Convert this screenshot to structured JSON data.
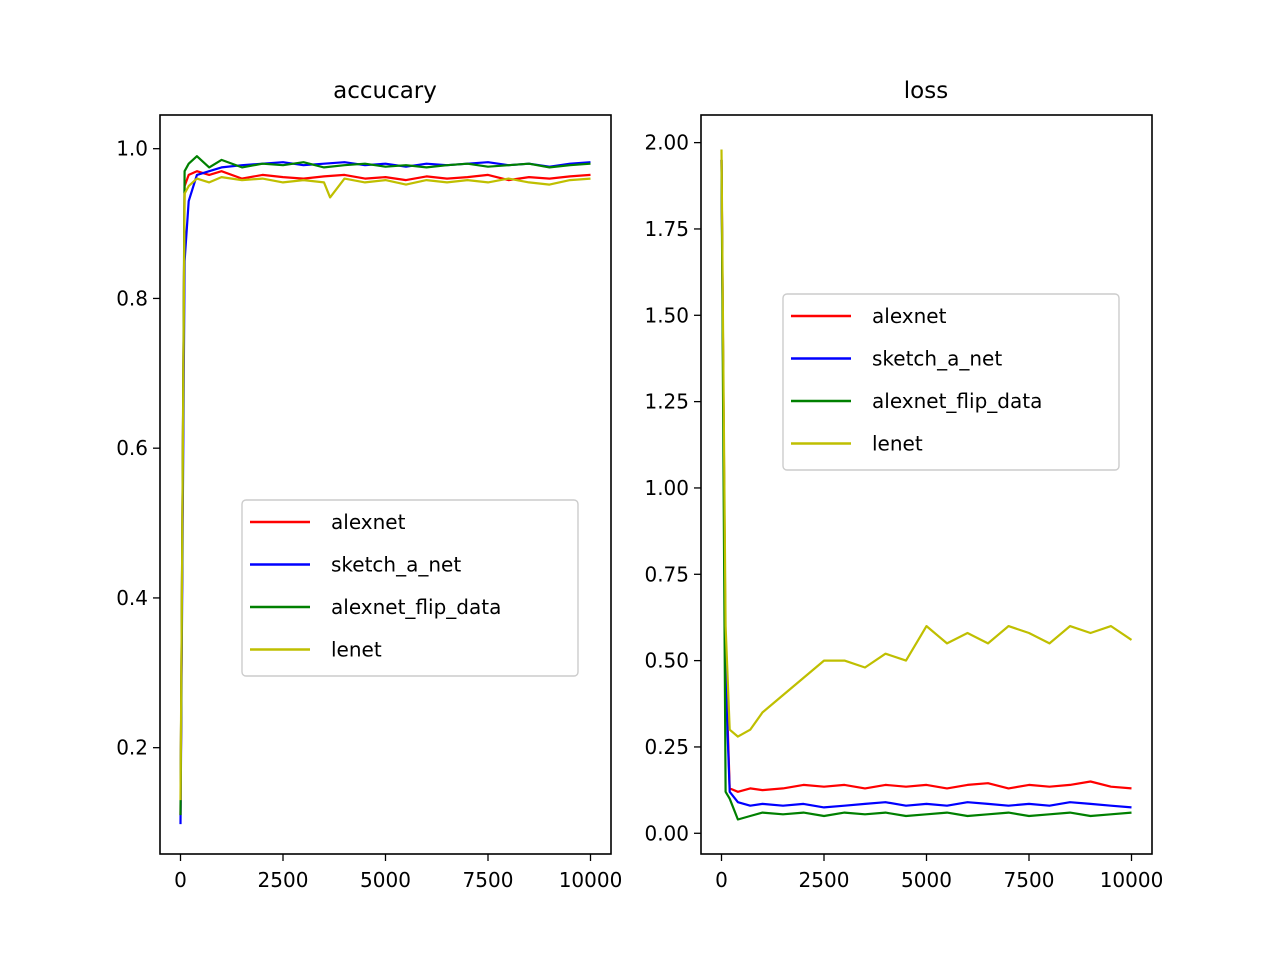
{
  "chart_data": [
    {
      "type": "line",
      "title": "accucary",
      "xlabel": "",
      "ylabel": "",
      "xlim": [
        -500,
        10500
      ],
      "ylim": [
        0.058,
        1.045
      ],
      "xticks": [
        0,
        2500,
        5000,
        7500,
        10000
      ],
      "xtick_labels": [
        "0",
        "2500",
        "5000",
        "7500",
        "10000"
      ],
      "yticks": [
        0.2,
        0.4,
        0.6,
        0.8,
        1.0
      ],
      "ytick_labels": [
        "0.2",
        "0.4",
        "0.6",
        "0.8",
        "1.0"
      ],
      "grid": false,
      "legend_position": "center-right",
      "series": [
        {
          "name": "alexnet",
          "color": "#ff0000",
          "x": [
            0,
            100,
            200,
            400,
            700,
            1000,
            1500,
            2000,
            2500,
            3000,
            3500,
            4000,
            4500,
            5000,
            5500,
            6000,
            6500,
            7000,
            7500,
            8000,
            8500,
            9000,
            9500,
            10000
          ],
          "y": [
            0.11,
            0.95,
            0.965,
            0.97,
            0.965,
            0.97,
            0.96,
            0.965,
            0.962,
            0.96,
            0.963,
            0.965,
            0.96,
            0.962,
            0.958,
            0.963,
            0.96,
            0.962,
            0.965,
            0.958,
            0.962,
            0.96,
            0.963,
            0.965
          ]
        },
        {
          "name": "sketch_a_net",
          "color": "#0000ff",
          "x": [
            0,
            100,
            200,
            400,
            700,
            1000,
            1500,
            2000,
            2500,
            3000,
            3500,
            4000,
            4500,
            5000,
            5500,
            6000,
            6500,
            7000,
            7500,
            8000,
            8500,
            9000,
            9500,
            10000
          ],
          "y": [
            0.098,
            0.85,
            0.93,
            0.965,
            0.97,
            0.975,
            0.978,
            0.98,
            0.982,
            0.978,
            0.98,
            0.982,
            0.978,
            0.98,
            0.976,
            0.98,
            0.978,
            0.98,
            0.982,
            0.978,
            0.98,
            0.976,
            0.98,
            0.982
          ]
        },
        {
          "name": "alexnet_flip_data",
          "color": "#008000",
          "x": [
            0,
            100,
            200,
            400,
            700,
            1000,
            1500,
            2000,
            2500,
            3000,
            3500,
            4000,
            4500,
            5000,
            5500,
            6000,
            6500,
            7000,
            7500,
            8000,
            8500,
            9000,
            9500,
            10000
          ],
          "y": [
            0.11,
            0.97,
            0.98,
            0.99,
            0.975,
            0.985,
            0.975,
            0.98,
            0.978,
            0.982,
            0.975,
            0.978,
            0.98,
            0.976,
            0.978,
            0.975,
            0.978,
            0.98,
            0.976,
            0.978,
            0.98,
            0.975,
            0.978,
            0.98
          ]
        },
        {
          "name": "lenet",
          "color": "#bfbf00",
          "x": [
            0,
            100,
            200,
            400,
            700,
            1000,
            1500,
            2000,
            2500,
            3000,
            3500,
            3650,
            4000,
            4500,
            5000,
            5500,
            6000,
            6500,
            7000,
            7500,
            8000,
            8500,
            9000,
            9500,
            10000
          ],
          "y": [
            0.13,
            0.94,
            0.95,
            0.96,
            0.955,
            0.962,
            0.958,
            0.96,
            0.955,
            0.958,
            0.955,
            0.935,
            0.96,
            0.955,
            0.958,
            0.952,
            0.958,
            0.955,
            0.958,
            0.955,
            0.96,
            0.955,
            0.952,
            0.958,
            0.96
          ]
        }
      ]
    },
    {
      "type": "line",
      "title": "loss",
      "xlabel": "",
      "ylabel": "",
      "xlim": [
        -500,
        10500
      ],
      "ylim": [
        -0.06,
        2.08
      ],
      "xticks": [
        0,
        2500,
        5000,
        7500,
        10000
      ],
      "xtick_labels": [
        "0",
        "2500",
        "5000",
        "7500",
        "10000"
      ],
      "yticks": [
        0.0,
        0.25,
        0.5,
        0.75,
        1.0,
        1.25,
        1.5,
        1.75,
        2.0
      ],
      "ytick_labels": [
        "0.00",
        "0.25",
        "0.50",
        "0.75",
        "1.00",
        "1.25",
        "1.50",
        "1.75",
        "2.00"
      ],
      "grid": false,
      "legend_position": "upper-right",
      "series": [
        {
          "name": "alexnet",
          "color": "#ff0000",
          "x": [
            0,
            100,
            200,
            400,
            700,
            1000,
            1500,
            2000,
            2500,
            3000,
            3500,
            4000,
            4500,
            5000,
            5500,
            6000,
            6500,
            7000,
            7500,
            8000,
            8500,
            9000,
            9500,
            10000
          ],
          "y": [
            1.95,
            0.5,
            0.13,
            0.12,
            0.13,
            0.125,
            0.13,
            0.14,
            0.135,
            0.14,
            0.13,
            0.14,
            0.135,
            0.14,
            0.13,
            0.14,
            0.145,
            0.13,
            0.14,
            0.135,
            0.14,
            0.15,
            0.135,
            0.13
          ]
        },
        {
          "name": "sketch_a_net",
          "color": "#0000ff",
          "x": [
            0,
            100,
            200,
            400,
            700,
            1000,
            1500,
            2000,
            2500,
            3000,
            3500,
            4000,
            4500,
            5000,
            5500,
            6000,
            6500,
            7000,
            7500,
            8000,
            8500,
            9000,
            9500,
            10000
          ],
          "y": [
            1.95,
            0.45,
            0.12,
            0.09,
            0.08,
            0.085,
            0.08,
            0.085,
            0.075,
            0.08,
            0.085,
            0.09,
            0.08,
            0.085,
            0.08,
            0.09,
            0.085,
            0.08,
            0.085,
            0.08,
            0.09,
            0.085,
            0.08,
            0.075
          ]
        },
        {
          "name": "alexnet_flip_data",
          "color": "#008000",
          "x": [
            0,
            100,
            200,
            400,
            700,
            1000,
            1500,
            2000,
            2500,
            3000,
            3500,
            4000,
            4500,
            5000,
            5500,
            6000,
            6500,
            7000,
            7500,
            8000,
            8500,
            9000,
            9500,
            10000
          ],
          "y": [
            1.95,
            0.12,
            0.1,
            0.04,
            0.05,
            0.06,
            0.055,
            0.06,
            0.05,
            0.06,
            0.055,
            0.06,
            0.05,
            0.055,
            0.06,
            0.05,
            0.055,
            0.06,
            0.05,
            0.055,
            0.06,
            0.05,
            0.055,
            0.06
          ]
        },
        {
          "name": "lenet",
          "color": "#bfbf00",
          "x": [
            0,
            100,
            200,
            400,
            700,
            1000,
            1500,
            2000,
            2500,
            3000,
            3500,
            4000,
            4500,
            5000,
            5500,
            6000,
            6500,
            7000,
            7500,
            8000,
            8500,
            9000,
            9500,
            10000
          ],
          "y": [
            1.98,
            0.6,
            0.3,
            0.28,
            0.3,
            0.35,
            0.4,
            0.45,
            0.5,
            0.5,
            0.48,
            0.52,
            0.5,
            0.6,
            0.55,
            0.58,
            0.55,
            0.6,
            0.58,
            0.55,
            0.6,
            0.58,
            0.6,
            0.56
          ]
        }
      ]
    }
  ]
}
